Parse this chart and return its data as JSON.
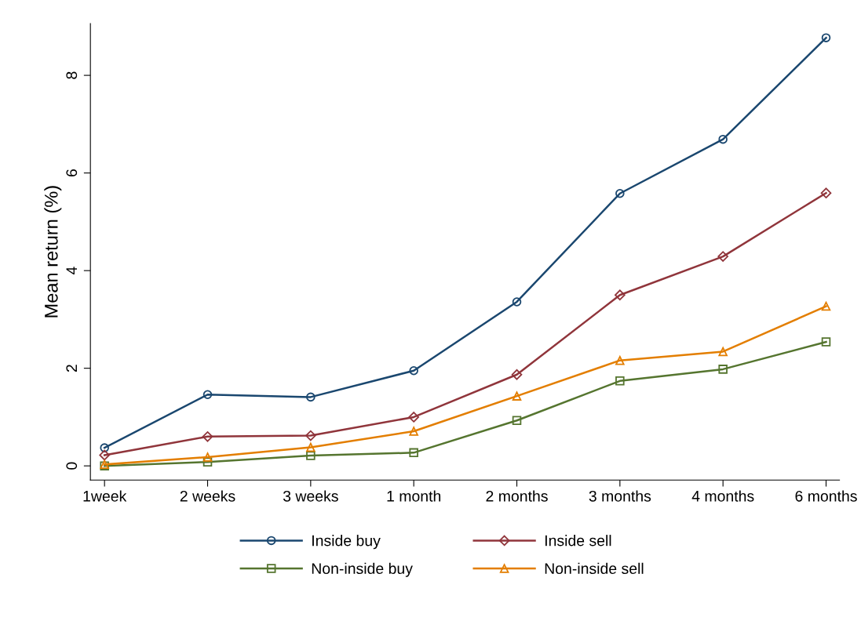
{
  "chart_data": {
    "type": "line",
    "ylabel": "Mean return (%)",
    "categories": [
      "1week",
      "2 weeks",
      "3 weeks",
      "1 month",
      "2 months",
      "3 months",
      "4 months",
      "6 months"
    ],
    "series": [
      {
        "name": "Inside buy",
        "color": "#1a476f",
        "marker": "circle",
        "values": [
          0.37,
          1.46,
          1.41,
          1.95,
          3.36,
          5.58,
          6.69,
          8.77
        ]
      },
      {
        "name": "Inside sell",
        "color": "#90353b",
        "marker": "diamond",
        "values": [
          0.22,
          0.6,
          0.62,
          1.0,
          1.87,
          3.5,
          4.29,
          5.59
        ]
      },
      {
        "name": "Non-inside buy",
        "color": "#55752f",
        "marker": "square",
        "values": [
          0.0,
          0.08,
          0.21,
          0.27,
          0.93,
          1.74,
          1.98,
          2.54
        ]
      },
      {
        "name": "Non-inside sell",
        "color": "#e37e00",
        "marker": "triangle",
        "values": [
          0.03,
          0.18,
          0.38,
          0.71,
          1.43,
          2.16,
          2.34,
          3.27
        ]
      }
    ],
    "ylim": [
      -0.29,
      9.06
    ],
    "yticks": [
      0,
      2,
      4,
      6,
      8
    ],
    "grid": false,
    "legend": "bottom",
    "line_style": "solid"
  }
}
